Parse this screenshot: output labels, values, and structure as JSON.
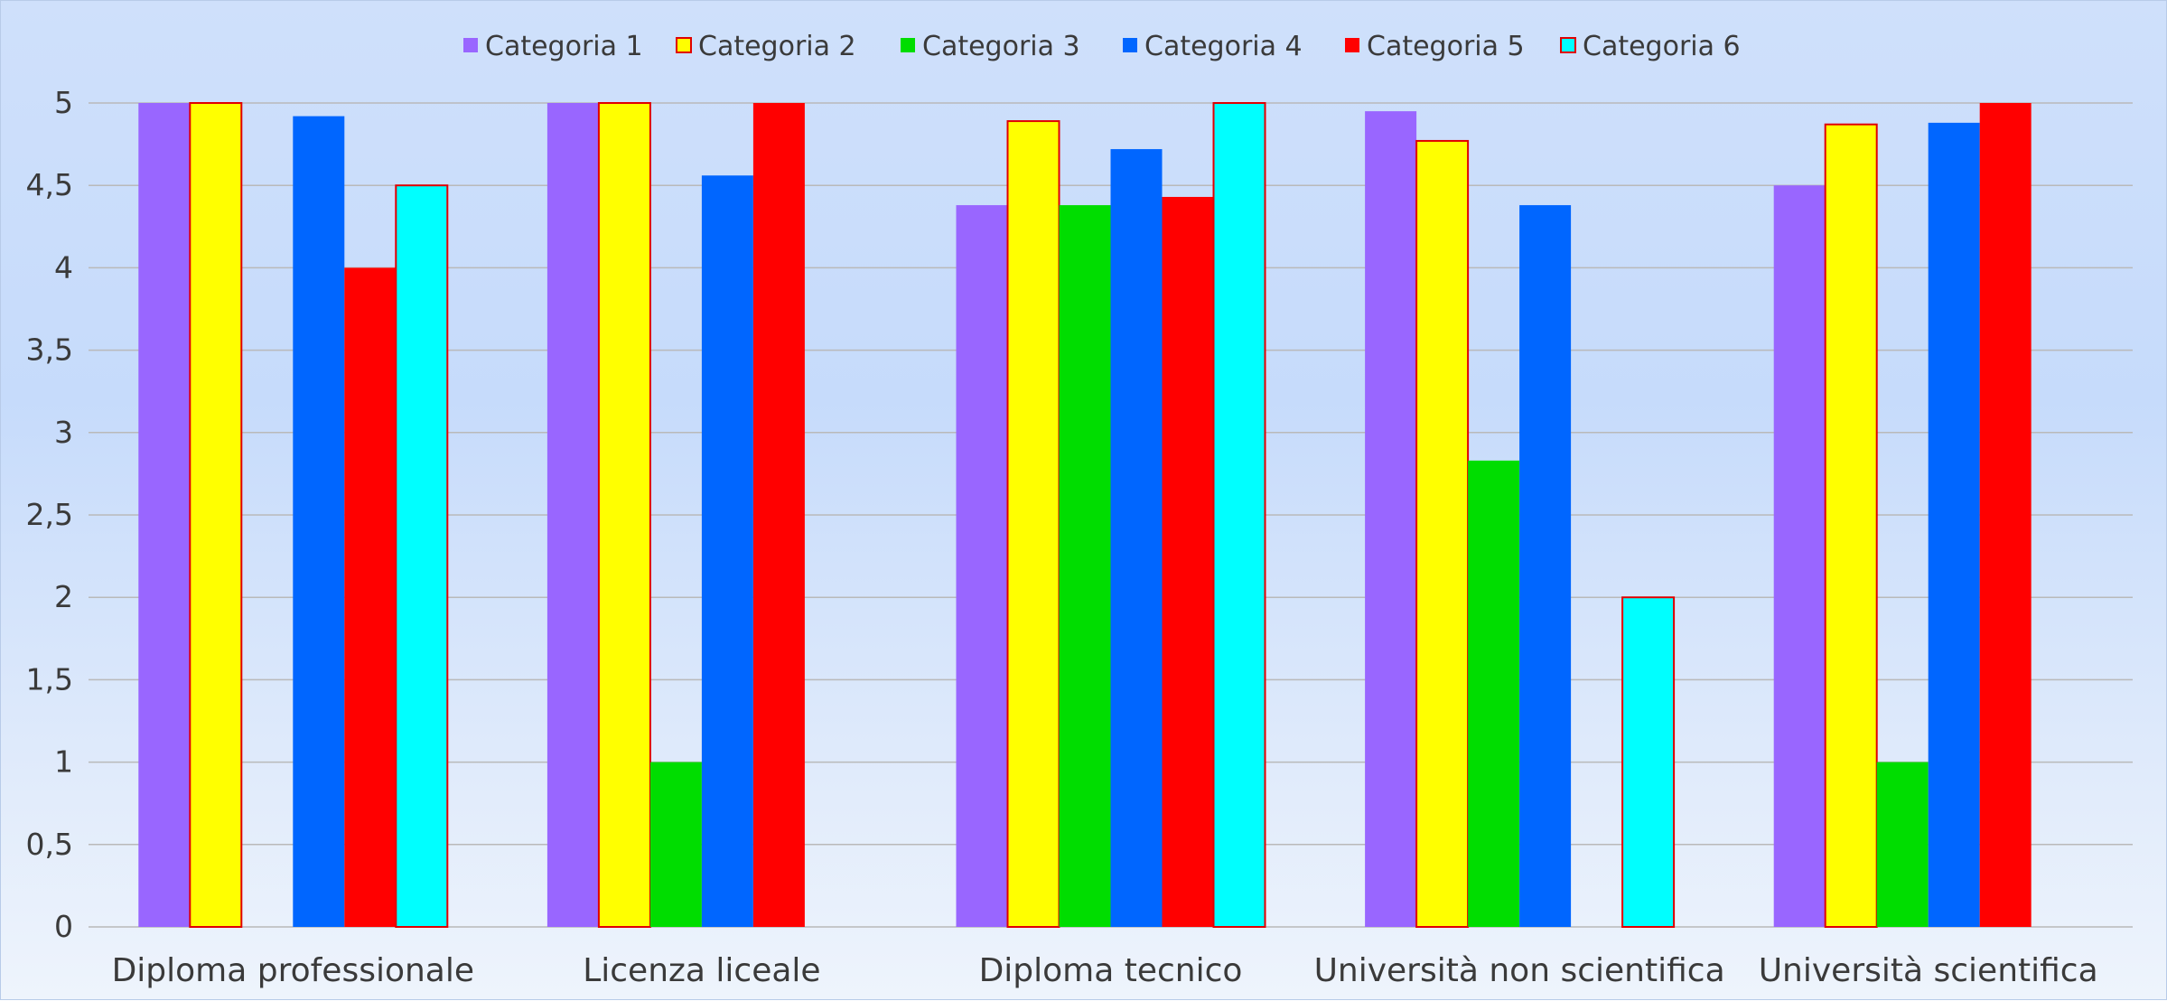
{
  "chart_data": {
    "type": "bar",
    "title": "",
    "xlabel": "",
    "ylabel": "",
    "ylim": [
      0,
      5
    ],
    "yticks": [
      "0",
      "0,5",
      "1",
      "1,5",
      "2",
      "2,5",
      "3",
      "3,5",
      "4",
      "4,5",
      "5"
    ],
    "grid": true,
    "legend_position": "top",
    "categories": [
      "Diploma professionale",
      "Licenza liceale",
      "Diploma tecnico",
      "Università non scientifica",
      "Università scientifica"
    ],
    "series": [
      {
        "name": "Categoria 1",
        "color": "#9966ff",
        "outline": "",
        "values": [
          5,
          5,
          4.38,
          4.95,
          4.5
        ]
      },
      {
        "name": "Categoria 2",
        "color": "#ffff00",
        "outline": "#e00000",
        "values": [
          5,
          5,
          4.89,
          4.77,
          4.87
        ]
      },
      {
        "name": "Categoria 3",
        "color": "#00dd00",
        "outline": "",
        "values": [
          null,
          1,
          4.38,
          2.83,
          1
        ]
      },
      {
        "name": "Categoria 4",
        "color": "#0066ff",
        "outline": "",
        "values": [
          4.92,
          4.56,
          4.72,
          4.38,
          4.88
        ]
      },
      {
        "name": "Categoria 5",
        "color": "#ff0000",
        "outline": "",
        "values": [
          4,
          5,
          4.43,
          null,
          5
        ]
      },
      {
        "name": "Categoria 6",
        "color": "#00ffff",
        "outline": "#e00000",
        "values": [
          4.5,
          null,
          5,
          2,
          null
        ]
      }
    ]
  }
}
